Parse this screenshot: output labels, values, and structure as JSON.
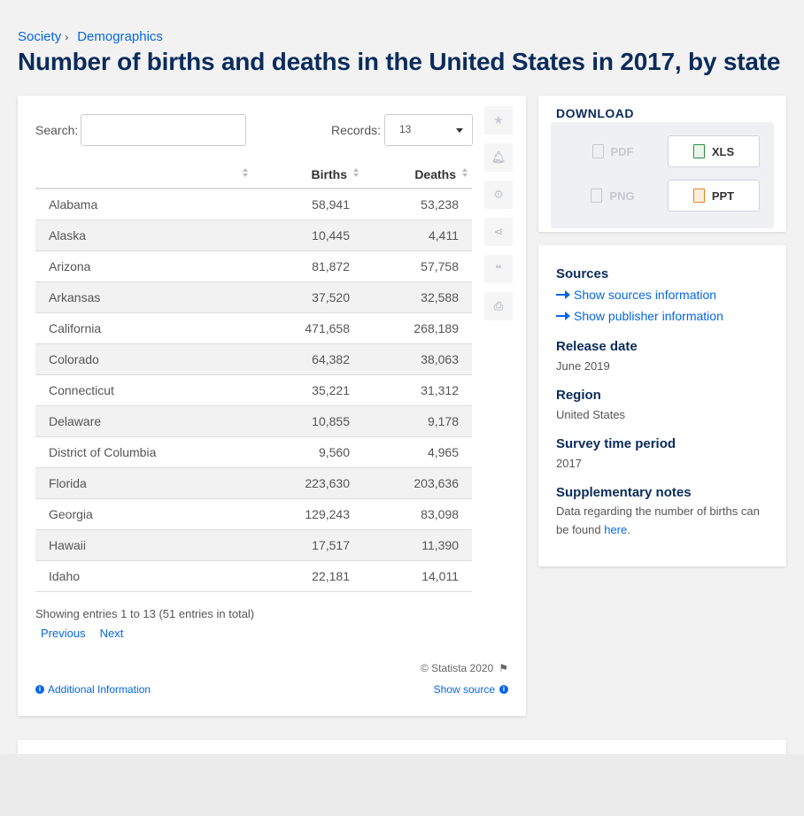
{
  "breadcrumb": {
    "items": [
      "Society",
      "Demographics"
    ],
    "separator": "›"
  },
  "page_title": "Number of births and deaths in the United States in 2017, by state",
  "table_controls": {
    "search_label": "Search:",
    "search_value": "",
    "records_label": "Records:",
    "records_value": "13"
  },
  "table": {
    "columns": [
      "",
      "Births",
      "Deaths"
    ],
    "rows": [
      {
        "state": "Alabama",
        "births": "58,941",
        "deaths": "53,238"
      },
      {
        "state": "Alaska",
        "births": "10,445",
        "deaths": "4,411"
      },
      {
        "state": "Arizona",
        "births": "81,872",
        "deaths": "57,758"
      },
      {
        "state": "Arkansas",
        "births": "37,520",
        "deaths": "32,588"
      },
      {
        "state": "California",
        "births": "471,658",
        "deaths": "268,189"
      },
      {
        "state": "Colorado",
        "births": "64,382",
        "deaths": "38,063"
      },
      {
        "state": "Connecticut",
        "births": "35,221",
        "deaths": "31,312"
      },
      {
        "state": "Delaware",
        "births": "10,855",
        "deaths": "9,178"
      },
      {
        "state": "District of Columbia",
        "births": "9,560",
        "deaths": "4,965"
      },
      {
        "state": "Florida",
        "births": "223,630",
        "deaths": "203,636"
      },
      {
        "state": "Georgia",
        "births": "129,243",
        "deaths": "83,098"
      },
      {
        "state": "Hawaii",
        "births": "17,517",
        "deaths": "11,390"
      },
      {
        "state": "Idaho",
        "births": "22,181",
        "deaths": "14,011"
      }
    ]
  },
  "entries_info": "Showing entries 1 to 13 (51 entries in total)",
  "pager": {
    "previous": "Previous",
    "next": "Next"
  },
  "footer": {
    "credit": "© Statista 2020",
    "additional_info": "Additional Information",
    "show_source": "Show source"
  },
  "tools": [
    "star-icon",
    "bell-icon",
    "gear-icon",
    "share-icon",
    "quote-icon",
    "print-icon"
  ],
  "download": {
    "title": "DOWNLOAD",
    "buttons": [
      {
        "label": "PDF",
        "enabled": false
      },
      {
        "label": "XLS",
        "enabled": true
      },
      {
        "label": "PNG",
        "enabled": false
      },
      {
        "label": "PPT",
        "enabled": true
      }
    ]
  },
  "info": {
    "sources_heading": "Sources",
    "show_sources": "Show sources information",
    "show_publisher": "Show publisher information",
    "release_heading": "Release date",
    "release_value": "June 2019",
    "region_heading": "Region",
    "region_value": "United States",
    "survey_heading": "Survey time period",
    "survey_value": "2017",
    "notes_heading": "Supplementary notes",
    "notes_text": "Data regarding the number of births can be found ",
    "notes_link": "here",
    "notes_end": "."
  },
  "colors": {
    "link": "#0666e5",
    "title": "#0a2b5c"
  }
}
